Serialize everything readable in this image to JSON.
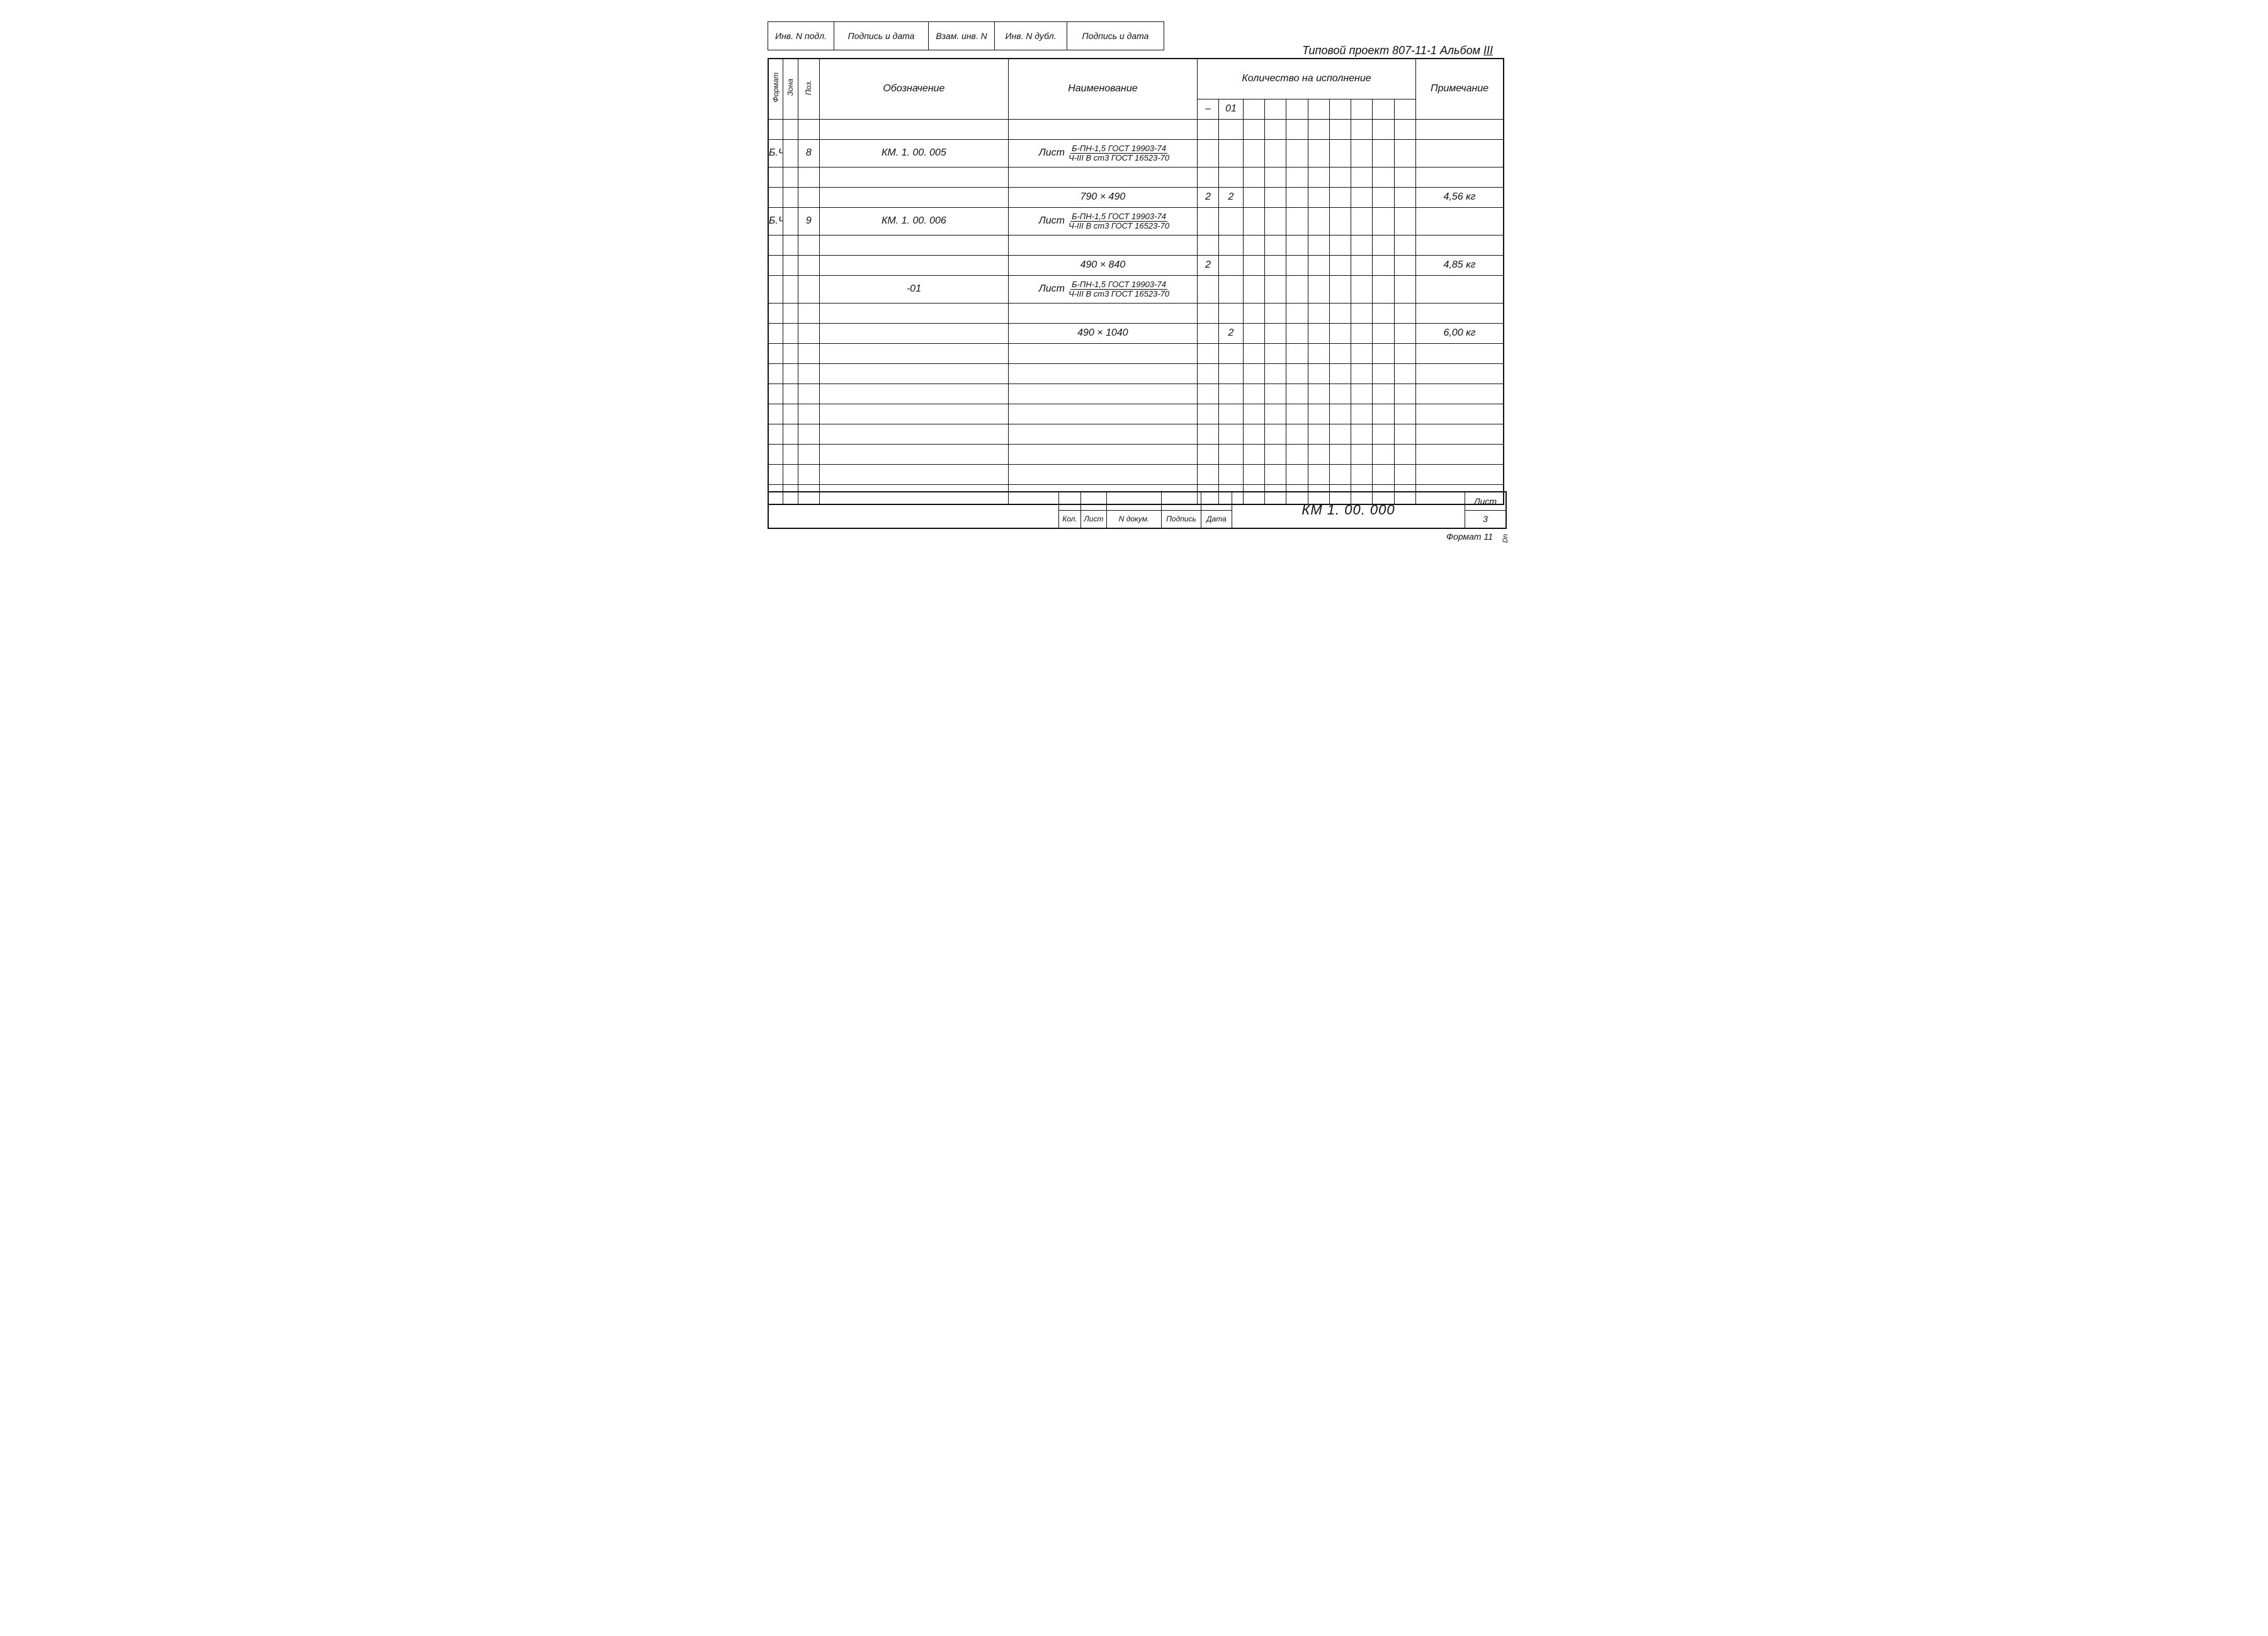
{
  "colors": {
    "ink": "#111111",
    "paper": "#ffffff"
  },
  "rev_strip": {
    "cells": [
      "Инв. N подл.",
      "Подпись и дата",
      "Взам. инв. N",
      "Инв. N дубл.",
      "Подпись и дата"
    ]
  },
  "project_title": {
    "prefix": "Типовой   проект",
    "code": "807-11-1",
    "album_label": "Альбом",
    "album_num": "III"
  },
  "main_table": {
    "headers": {
      "format": "Формат",
      "zone": "Зона",
      "pos": "Поз.",
      "designation": "Обозначение",
      "name": "Наименование",
      "qty_group": "Количество на исполнение",
      "qty_dash": "–",
      "qty_01": "01",
      "note": "Примечание"
    },
    "rows": [
      {
        "format": "",
        "zone": "",
        "pos": "",
        "designation": "",
        "name": "",
        "q_dash": "",
        "q_01": "",
        "note": ""
      },
      {
        "format": "Б.Ч",
        "zone": "",
        "pos": "8",
        "designation": "КМ. 1. 00. 005",
        "name_frac": {
          "label": "Лист",
          "num": "Б-ПН-1,5 ГОСТ 19903-74",
          "den": "Ч-III В ст3 ГОСТ 16523-70"
        },
        "q_dash": "",
        "q_01": "",
        "note": "",
        "tall": true
      },
      {
        "format": "",
        "zone": "",
        "pos": "",
        "designation": "",
        "name": "",
        "q_dash": "",
        "q_01": "",
        "note": ""
      },
      {
        "format": "",
        "zone": "",
        "pos": "",
        "designation": "",
        "name": "790 × 490",
        "q_dash": "2",
        "q_01": "2",
        "note": "4,56 кг"
      },
      {
        "format": "Б.Ч",
        "zone": "",
        "pos": "9",
        "designation": "КМ. 1. 00. 006",
        "name_frac": {
          "label": "Лист",
          "num": "Б-ПН-1,5 ГОСТ 19903-74",
          "den": "Ч-III В ст3 ГОСТ 16523-70"
        },
        "q_dash": "",
        "q_01": "",
        "note": "",
        "tall": true
      },
      {
        "format": "",
        "zone": "",
        "pos": "",
        "designation": "",
        "name": "",
        "q_dash": "",
        "q_01": "",
        "note": ""
      },
      {
        "format": "",
        "zone": "",
        "pos": "",
        "designation": "",
        "name": "490 × 840",
        "q_dash": "2",
        "q_01": "",
        "note": "4,85 кг"
      },
      {
        "format": "",
        "zone": "",
        "pos": "",
        "designation": "-01",
        "name_frac": {
          "label": "Лист",
          "num": "Б-ПН-1,5 ГОСТ 19903-74",
          "den": "Ч-III В ст3 ГОСТ 16523-70"
        },
        "q_dash": "",
        "q_01": "",
        "note": "",
        "tall": true,
        "center_desig": true
      },
      {
        "format": "",
        "zone": "",
        "pos": "",
        "designation": "",
        "name": "",
        "q_dash": "",
        "q_01": "",
        "note": ""
      },
      {
        "format": "",
        "zone": "",
        "pos": "",
        "designation": "",
        "name": "490 × 1040",
        "q_dash": "",
        "q_01": "2",
        "note": "6,00 кг"
      },
      {
        "format": "",
        "zone": "",
        "pos": "",
        "designation": "",
        "name": "",
        "q_dash": "",
        "q_01": "",
        "note": ""
      },
      {
        "format": "",
        "zone": "",
        "pos": "",
        "designation": "",
        "name": "",
        "q_dash": "",
        "q_01": "",
        "note": ""
      },
      {
        "format": "",
        "zone": "",
        "pos": "",
        "designation": "",
        "name": "",
        "q_dash": "",
        "q_01": "",
        "note": ""
      },
      {
        "format": "",
        "zone": "",
        "pos": "",
        "designation": "",
        "name": "",
        "q_dash": "",
        "q_01": "",
        "note": ""
      },
      {
        "format": "",
        "zone": "",
        "pos": "",
        "designation": "",
        "name": "",
        "q_dash": "",
        "q_01": "",
        "note": ""
      },
      {
        "format": "",
        "zone": "",
        "pos": "",
        "designation": "",
        "name": "",
        "q_dash": "",
        "q_01": "",
        "note": ""
      },
      {
        "format": "",
        "zone": "",
        "pos": "",
        "designation": "",
        "name": "",
        "q_dash": "",
        "q_01": "",
        "note": ""
      },
      {
        "format": "",
        "zone": "",
        "pos": "",
        "designation": "",
        "name": "",
        "q_dash": "",
        "q_01": "",
        "note": ""
      }
    ],
    "extra_qty_cols": 8
  },
  "title_block": {
    "mid_headers": [
      "Кол.",
      "Лист",
      "N докум.",
      "Подпись",
      "Дата"
    ],
    "doc_number": "КМ 1. 00. 000",
    "sheet_label": "Лист",
    "sheet_number": "3"
  },
  "format_label": "Формат 11",
  "side_note": "Dn"
}
